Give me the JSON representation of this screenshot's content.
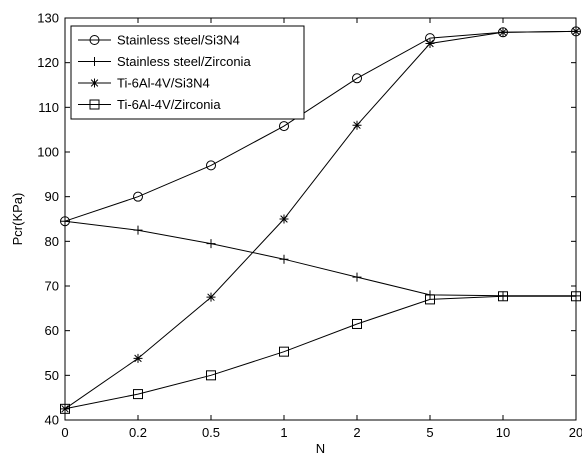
{
  "chart_data": {
    "type": "line",
    "title": "",
    "xlabel": "N",
    "ylabel": "Pcr(KPa)",
    "categories": [
      "0",
      "0.2",
      "0.5",
      "1",
      "2",
      "5",
      "10",
      "20"
    ],
    "ylim": [
      40,
      130
    ],
    "yticks": [
      40,
      50,
      60,
      70,
      80,
      90,
      100,
      110,
      120,
      130
    ],
    "grid": false,
    "legend_position": "top-left",
    "series": [
      {
        "name": "Stainless steel/Si3N4",
        "marker": "circle",
        "values": [
          84.5,
          90,
          97,
          105.8,
          116.5,
          125.5,
          126.8,
          127
        ]
      },
      {
        "name": "Stainless steel/Zirconia",
        "marker": "plus",
        "values": [
          84.5,
          82.5,
          79.5,
          76,
          72,
          68,
          67.8,
          67.8
        ]
      },
      {
        "name": "Ti-6Al-4V/Si3N4",
        "marker": "asterisk",
        "values": [
          42.5,
          53.8,
          67.5,
          85,
          106,
          124.3,
          126.8,
          127
        ]
      },
      {
        "name": "Ti-6Al-4V/Zirconia",
        "marker": "square",
        "values": [
          42.5,
          45.8,
          50,
          55.3,
          61.5,
          67,
          67.7,
          67.7
        ]
      }
    ],
    "colors": {
      "line": "#000000",
      "axis": "#000000",
      "background": "#ffffff"
    }
  }
}
